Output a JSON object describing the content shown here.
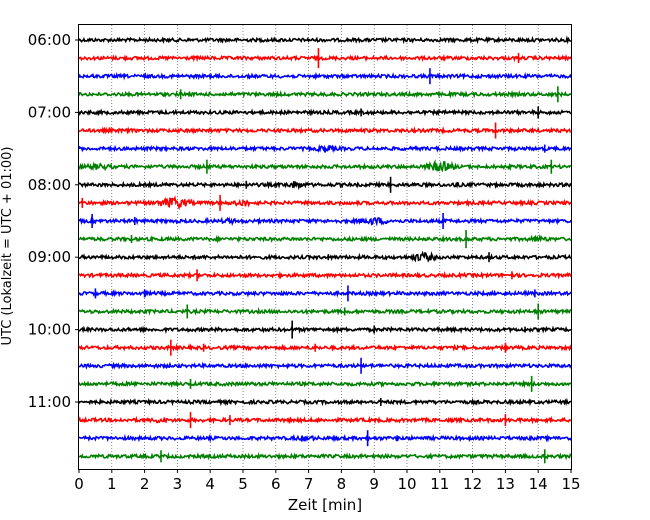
{
  "chart_data": {
    "type": "line",
    "title": "",
    "xlabel": "Zeit  [min]",
    "ylabel": "UTC (Lokalzeit = UTC + 01:00)",
    "xlim": [
      0,
      15
    ],
    "x_ticks": [
      0,
      1,
      2,
      3,
      4,
      5,
      6,
      7,
      8,
      9,
      10,
      11,
      12,
      13,
      14,
      15
    ],
    "x_grid": true,
    "y_tick_labels": [
      {
        "label": "06:00",
        "trace_index": 0
      },
      {
        "label": "07:00",
        "trace_index": 4
      },
      {
        "label": "08:00",
        "trace_index": 8
      },
      {
        "label": "09:00",
        "trace_index": 12
      },
      {
        "label": "10:00",
        "trace_index": 16
      },
      {
        "label": "11:00",
        "trace_index": 20
      }
    ],
    "trace_colors": [
      "#000000",
      "#ff0000",
      "#0000ff",
      "#008000"
    ],
    "series": [
      {
        "start": "06:00",
        "spikes": [],
        "bursts": []
      },
      {
        "start": "06:15",
        "spikes": [
          {
            "x": 7.3,
            "amp": 10
          },
          {
            "x": 13.4,
            "amp": 5
          }
        ],
        "bursts": []
      },
      {
        "start": "06:30",
        "spikes": [
          {
            "x": 10.7,
            "amp": 8
          }
        ],
        "bursts": []
      },
      {
        "start": "06:45",
        "spikes": [
          {
            "x": 3.1,
            "amp": 5
          },
          {
            "x": 14.6,
            "amp": 8
          }
        ],
        "bursts": []
      },
      {
        "start": "07:00",
        "spikes": [
          {
            "x": 8.6,
            "amp": 4
          },
          {
            "x": 14.0,
            "amp": 6
          }
        ],
        "bursts": []
      },
      {
        "start": "07:15",
        "spikes": [
          {
            "x": 12.7,
            "amp": 8
          }
        ],
        "bursts": []
      },
      {
        "start": "07:30",
        "spikes": [
          {
            "x": 14.2,
            "amp": 4
          }
        ],
        "bursts": [
          {
            "x": 7.5,
            "width": 0.6,
            "amp": 4
          }
        ]
      },
      {
        "start": "07:45",
        "spikes": [
          {
            "x": 3.9,
            "amp": 7
          },
          {
            "x": 14.4,
            "amp": 7
          }
        ],
        "bursts": [
          {
            "x": 11.0,
            "width": 0.9,
            "amp": 6
          },
          {
            "x": 0.6,
            "width": 1.0,
            "amp": 3.5
          }
        ]
      },
      {
        "start": "08:00",
        "spikes": [
          {
            "x": 9.5,
            "amp": 8
          },
          {
            "x": 5.1,
            "amp": 4
          }
        ],
        "bursts": [
          {
            "x": 6.6,
            "width": 0.8,
            "amp": 4
          },
          {
            "x": 11.5,
            "width": 0.5,
            "amp": 3
          }
        ]
      },
      {
        "start": "08:15",
        "spikes": [
          {
            "x": 4.3,
            "amp": 8
          },
          {
            "x": 0.1,
            "amp": 5
          }
        ],
        "bursts": [
          {
            "x": 2.9,
            "width": 1.1,
            "amp": 6
          },
          {
            "x": 5.0,
            "width": 0.6,
            "amp": 4
          }
        ]
      },
      {
        "start": "08:30",
        "spikes": [
          {
            "x": 0.4,
            "amp": 7
          },
          {
            "x": 11.1,
            "amp": 8
          },
          {
            "x": 1.7,
            "amp": 4
          }
        ],
        "bursts": [
          {
            "x": 9.0,
            "width": 1.2,
            "amp": 4
          },
          {
            "x": 4.6,
            "width": 0.8,
            "amp": 3
          }
        ]
      },
      {
        "start": "08:45",
        "spikes": [
          {
            "x": 11.8,
            "amp": 9
          },
          {
            "x": 1.6,
            "amp": 4
          }
        ],
        "bursts": [
          {
            "x": 14.0,
            "width": 1.0,
            "amp": 3
          }
        ]
      },
      {
        "start": "09:00",
        "spikes": [
          {
            "x": 12.5,
            "amp": 5
          },
          {
            "x": 7.6,
            "amp": 3
          }
        ],
        "bursts": [
          {
            "x": 10.5,
            "width": 0.8,
            "amp": 5
          }
        ]
      },
      {
        "start": "09:15",
        "spikes": [
          {
            "x": 3.6,
            "amp": 6
          },
          {
            "x": 13.2,
            "amp": 4
          }
        ],
        "bursts": []
      },
      {
        "start": "09:30",
        "spikes": [
          {
            "x": 8.2,
            "amp": 8
          },
          {
            "x": 0.5,
            "amp": 5
          },
          {
            "x": 2.0,
            "amp": 4
          },
          {
            "x": 13.9,
            "amp": 4
          }
        ],
        "bursts": []
      },
      {
        "start": "09:45",
        "spikes": [
          {
            "x": 3.3,
            "amp": 7
          },
          {
            "x": 8.1,
            "amp": 4
          },
          {
            "x": 14.0,
            "amp": 8
          }
        ],
        "bursts": []
      },
      {
        "start": "10:00",
        "spikes": [
          {
            "x": 6.5,
            "amp": 9
          },
          {
            "x": 9.0,
            "amp": 4
          },
          {
            "x": 13.6,
            "amp": 3
          }
        ],
        "bursts": []
      },
      {
        "start": "10:15",
        "spikes": [
          {
            "x": 2.8,
            "amp": 8
          },
          {
            "x": 13.0,
            "amp": 5
          },
          {
            "x": 3.8,
            "amp": 4
          },
          {
            "x": 7.2,
            "amp": 4
          }
        ],
        "bursts": []
      },
      {
        "start": "10:30",
        "spikes": [
          {
            "x": 8.6,
            "amp": 8
          }
        ],
        "bursts": []
      },
      {
        "start": "10:45",
        "spikes": [
          {
            "x": 13.8,
            "amp": 8
          },
          {
            "x": 3.4,
            "amp": 5
          }
        ],
        "bursts": []
      },
      {
        "start": "11:00",
        "spikes": [
          {
            "x": 9.2,
            "amp": 4
          }
        ],
        "bursts": []
      },
      {
        "start": "11:15",
        "spikes": [
          {
            "x": 3.4,
            "amp": 8
          },
          {
            "x": 4.6,
            "amp": 5
          },
          {
            "x": 13.0,
            "amp": 6
          }
        ],
        "bursts": [
          {
            "x": 2.5,
            "width": 0.4,
            "amp": 4
          }
        ]
      },
      {
        "start": "11:30",
        "spikes": [
          {
            "x": 8.8,
            "amp": 8
          },
          {
            "x": 9.7,
            "amp": 3
          }
        ],
        "bursts": [
          {
            "x": 6.9,
            "width": 1.1,
            "amp": 3
          }
        ]
      },
      {
        "start": "11:45",
        "spikes": [
          {
            "x": 2.5,
            "amp": 6
          },
          {
            "x": 14.2,
            "amp": 7
          }
        ],
        "bursts": []
      }
    ]
  }
}
